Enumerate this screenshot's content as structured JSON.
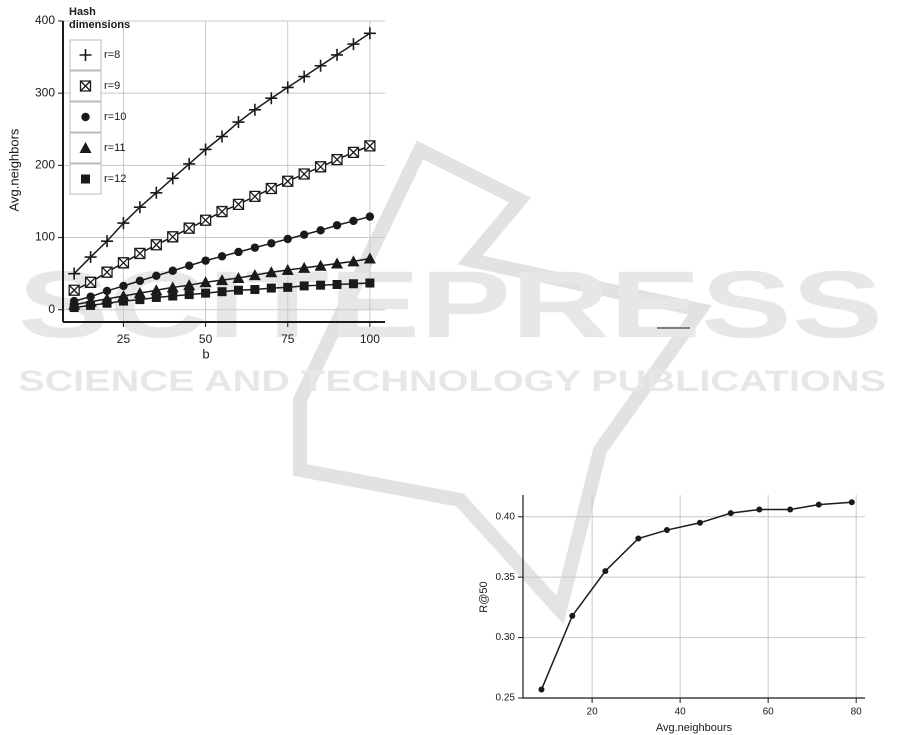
{
  "chart_data": [
    {
      "type": "line",
      "xlabel": "b",
      "ylabel": "Avg.neighbors",
      "legend_title": "Hash dimensions",
      "legend": "upper left",
      "x": [
        10,
        15,
        20,
        25,
        30,
        35,
        40,
        45,
        50,
        55,
        60,
        65,
        70,
        75,
        80,
        85,
        90,
        95,
        100
      ],
      "series": [
        {
          "name": "r=8",
          "color": "#1a1a1a",
          "marker": "plus",
          "values": [
            50,
            73,
            95,
            120,
            142,
            162,
            182,
            202,
            222,
            240,
            260,
            277,
            293,
            308,
            323,
            338,
            353,
            368,
            383
          ]
        },
        {
          "name": "r=9",
          "color": "#1a1a1a",
          "marker": "boxx",
          "values": [
            27,
            38,
            52,
            65,
            78,
            90,
            101,
            113,
            124,
            136,
            146,
            157,
            168,
            178,
            188,
            198,
            208,
            218,
            227
          ]
        },
        {
          "name": "r=10",
          "color": "#1a1a1a",
          "marker": "circle",
          "values": [
            12,
            18,
            26,
            33,
            40,
            47,
            54,
            61,
            68,
            74,
            80,
            86,
            92,
            98,
            104,
            110,
            117,
            123,
            129
          ]
        },
        {
          "name": "r=11",
          "color": "#1a1a1a",
          "marker": "triangle",
          "values": [
            7,
            11,
            15,
            19,
            23,
            27,
            31,
            34,
            38,
            41,
            44,
            48,
            52,
            55,
            58,
            61,
            64,
            67,
            71
          ]
        },
        {
          "name": "r=12",
          "color": "#1a1a1a",
          "marker": "square",
          "values": [
            3,
            6,
            9,
            12,
            14,
            17,
            19,
            21,
            23,
            25,
            27,
            28,
            30,
            31,
            33,
            34,
            35,
            36,
            37
          ]
        }
      ],
      "xlim": [
        6.6,
        104.6
      ],
      "xticks": [
        25,
        50,
        75,
        100
      ],
      "ylim": [
        -17,
        400
      ],
      "yticks": [
        0,
        100,
        200,
        300,
        400
      ],
      "grid": true
    },
    {
      "type": "line",
      "xlabel": "Avg.neighbours",
      "ylabel": "R@50",
      "color": "#1a1a1a",
      "marker": "circle",
      "x": [
        8.5,
        15.5,
        23,
        30.5,
        37,
        44.5,
        51.5,
        58,
        65,
        71.5,
        79
      ],
      "values": [
        0.257,
        0.318,
        0.355,
        0.382,
        0.389,
        0.395,
        0.403,
        0.406,
        0.406,
        0.41,
        0.412
      ],
      "xlim": [
        4.3,
        82
      ],
      "xticks": [
        20,
        40,
        60,
        80
      ],
      "ylim": [
        0.25,
        0.418
      ],
      "yticks": [
        0.25,
        {
          "value": 0.3,
          "label": "0.30"
        },
        0.35,
        {
          "value": 0.4,
          "label": "0.40"
        }
      ],
      "grid": true
    }
  ],
  "watermark": {
    "brand": "SCITEPRESS",
    "tagline": "SCIENCE AND TECHNOLOGY PUBLICATIONS"
  }
}
